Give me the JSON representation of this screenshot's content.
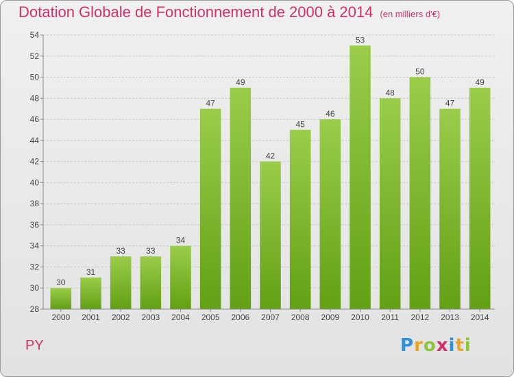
{
  "title": "Dotation Globale de Fonctionnement de 2000 à 2014",
  "unit": "(en milliers d'€)",
  "commune": "PY",
  "brand": {
    "letters": [
      {
        "char": "P",
        "color": "#2f8fd8"
      },
      {
        "char": "r",
        "color": "#e8a52a"
      },
      {
        "char": "o",
        "color": "#8cc43c"
      },
      {
        "char": "x",
        "color": "#d0306b"
      },
      {
        "char": "i",
        "color": "#2f8fd8"
      },
      {
        "char": "t",
        "color": "#e8a52a"
      },
      {
        "char": "i",
        "color": "#8cc43c"
      }
    ]
  },
  "colors": {
    "accent": "#d0306b",
    "bar_top": "#9acd4a",
    "bar_bottom": "#62a014"
  },
  "chart_data": {
    "type": "bar",
    "title": "Dotation Globale de Fonctionnement de 2000 à 2014",
    "subtitle": "(en milliers d'€)",
    "categories": [
      "2000",
      "2001",
      "2002",
      "2003",
      "2004",
      "2005",
      "2006",
      "2007",
      "2008",
      "2009",
      "2010",
      "2011",
      "2012",
      "2013",
      "2014"
    ],
    "values": [
      30,
      31,
      33,
      33,
      34,
      47,
      49,
      42,
      45,
      46,
      53,
      48,
      50,
      47,
      49
    ],
    "ylim": [
      28,
      54
    ],
    "yticks": [
      28,
      30,
      32,
      34,
      36,
      38,
      40,
      42,
      44,
      46,
      48,
      50,
      52,
      54
    ],
    "grid": true,
    "legend": "none"
  }
}
